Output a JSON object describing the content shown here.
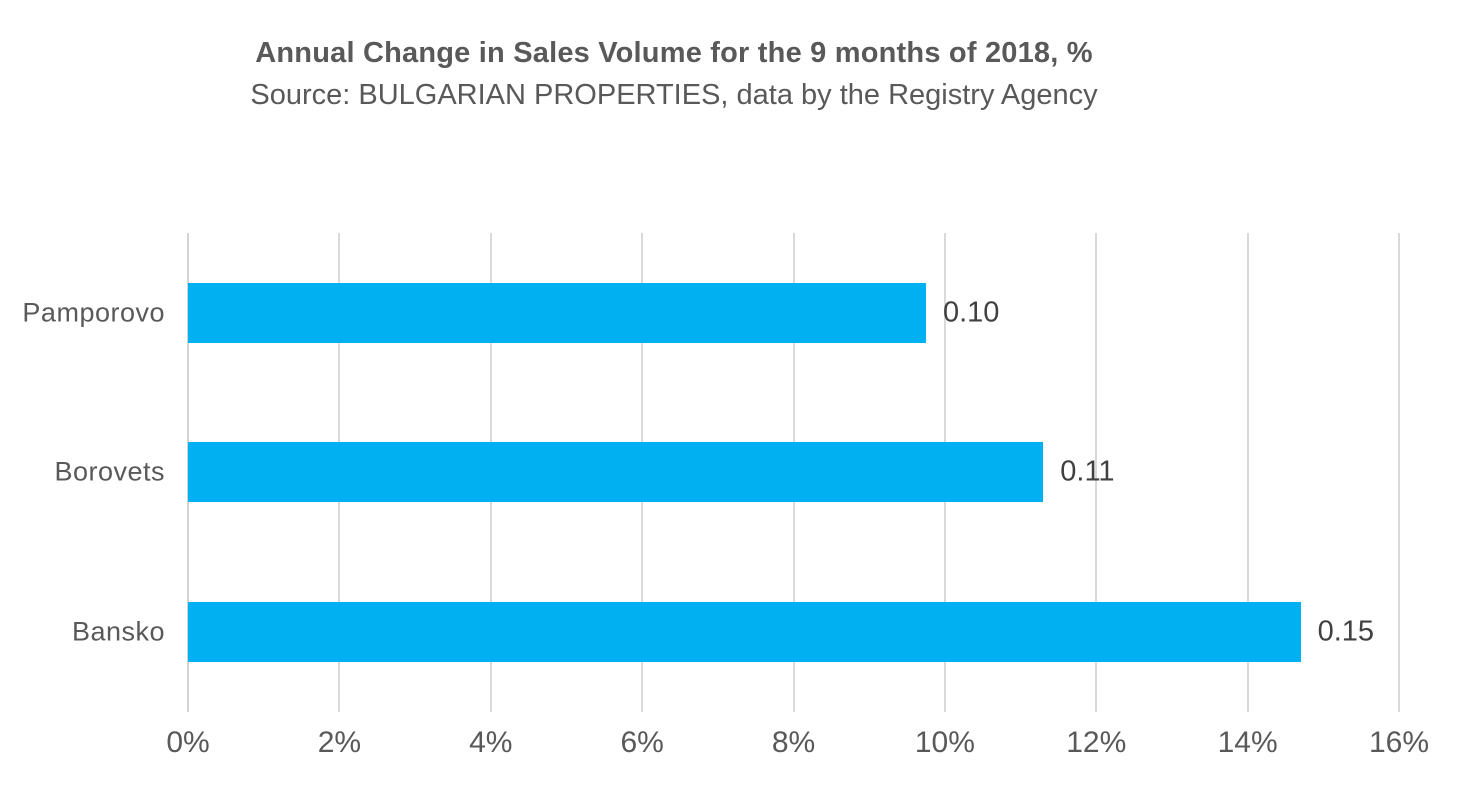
{
  "chart_data": {
    "type": "bar",
    "orientation": "horizontal",
    "title": "Annual Change in Sales Volume for the 9 months of 2018, %",
    "subtitle": "Source: BULGARIAN PROPERTIES, data by the Registry Agency",
    "categories": [
      "Pamporovo",
      "Borovets",
      "Bansko"
    ],
    "values": [
      0.098,
      0.113,
      0.147
    ],
    "values_percent": [
      9.75,
      11.3,
      14.7
    ],
    "data_labels": [
      "0.10",
      "0.11",
      "0.15"
    ],
    "x_ticks": [
      "0%",
      "2%",
      "4%",
      "6%",
      "8%",
      "10%",
      "12%",
      "14%",
      "16%"
    ],
    "xlim": [
      0,
      16
    ],
    "xlabel": "",
    "ylabel": "",
    "grid": "vertical-only",
    "legend": "none",
    "bar_color": "#00B0F0",
    "text_color": "#595959",
    "value_label_color": "#404040",
    "gridline_color": "#D9D9D9"
  }
}
